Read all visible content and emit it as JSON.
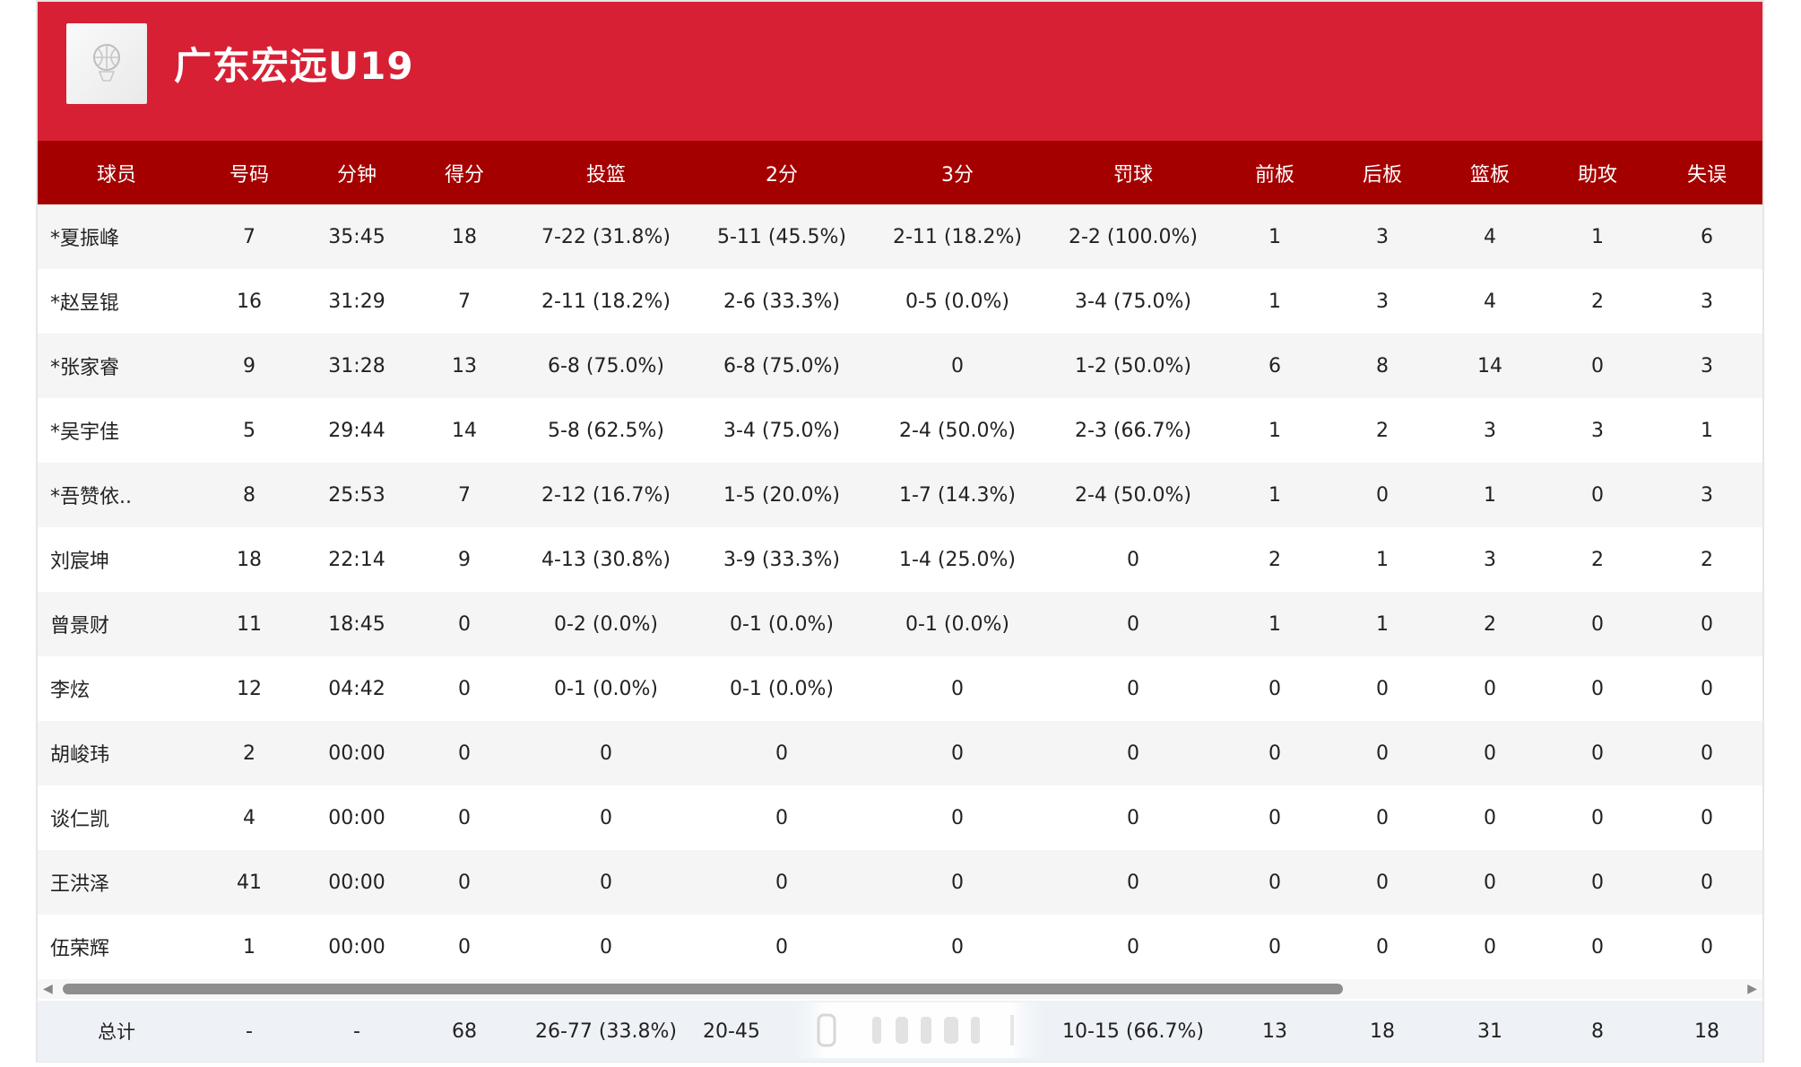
{
  "team": {
    "name": "广东宏远U19",
    "logo_icon": "basketball-team-logo-icon"
  },
  "colors": {
    "header_bg": "#d82035",
    "table_header_bg": "#a50000",
    "row_alt_bg": "#f5f5f5",
    "totals_bg": "#eef2f7"
  },
  "columns": [
    "球员",
    "号码",
    "分钟",
    "得分",
    "投篮",
    "2分",
    "3分",
    "罚球",
    "前板",
    "后板",
    "篮板",
    "助攻",
    "失误"
  ],
  "rows": [
    [
      "*夏振峰",
      "7",
      "35:45",
      "18",
      "7-22 (31.8%)",
      "5-11 (45.5%)",
      "2-11 (18.2%)",
      "2-2 (100.0%)",
      "1",
      "3",
      "4",
      "1",
      "6"
    ],
    [
      "*赵昱锟",
      "16",
      "31:29",
      "7",
      "2-11 (18.2%)",
      "2-6 (33.3%)",
      "0-5 (0.0%)",
      "3-4 (75.0%)",
      "1",
      "3",
      "4",
      "2",
      "3"
    ],
    [
      "*张家睿",
      "9",
      "31:28",
      "13",
      "6-8 (75.0%)",
      "6-8 (75.0%)",
      "0",
      "1-2 (50.0%)",
      "6",
      "8",
      "14",
      "0",
      "3"
    ],
    [
      "*吴宇佳",
      "5",
      "29:44",
      "14",
      "5-8 (62.5%)",
      "3-4 (75.0%)",
      "2-4 (50.0%)",
      "2-3 (66.7%)",
      "1",
      "2",
      "3",
      "3",
      "1"
    ],
    [
      "*吾赞依..",
      "8",
      "25:53",
      "7",
      "2-12 (16.7%)",
      "1-5 (20.0%)",
      "1-7 (14.3%)",
      "2-4 (50.0%)",
      "1",
      "0",
      "1",
      "0",
      "3"
    ],
    [
      "刘宸坤",
      "18",
      "22:14",
      "9",
      "4-13 (30.8%)",
      "3-9 (33.3%)",
      "1-4 (25.0%)",
      "0",
      "2",
      "1",
      "3",
      "2",
      "2"
    ],
    [
      "曾景财",
      "11",
      "18:45",
      "0",
      "0-2 (0.0%)",
      "0-1 (0.0%)",
      "0-1 (0.0%)",
      "0",
      "1",
      "1",
      "2",
      "0",
      "0"
    ],
    [
      "李炫",
      "12",
      "04:42",
      "0",
      "0-1 (0.0%)",
      "0-1 (0.0%)",
      "0",
      "0",
      "0",
      "0",
      "0",
      "0",
      "0"
    ],
    [
      "胡峻玮",
      "2",
      "00:00",
      "0",
      "0",
      "0",
      "0",
      "0",
      "0",
      "0",
      "0",
      "0",
      "0"
    ],
    [
      "谈仁凯",
      "4",
      "00:00",
      "0",
      "0",
      "0",
      "0",
      "0",
      "0",
      "0",
      "0",
      "0",
      "0"
    ],
    [
      "王洪泽",
      "41",
      "00:00",
      "0",
      "0",
      "0",
      "0",
      "0",
      "0",
      "0",
      "0",
      "0",
      "0"
    ],
    [
      "伍荣辉",
      "1",
      "00:00",
      "0",
      "0",
      "0",
      "0",
      "0",
      "0",
      "0",
      "0",
      "0",
      "0"
    ]
  ],
  "totals": [
    "总计",
    "-",
    "-",
    "68",
    "26-77 (33.8%)",
    "20-45",
    "",
    "10-15 (66.7%)",
    "13",
    "18",
    "31",
    "8",
    "18"
  ],
  "scrollbar": {
    "left_arrow_icon": "arrow-left-icon",
    "right_arrow_icon": "arrow-right-icon"
  }
}
